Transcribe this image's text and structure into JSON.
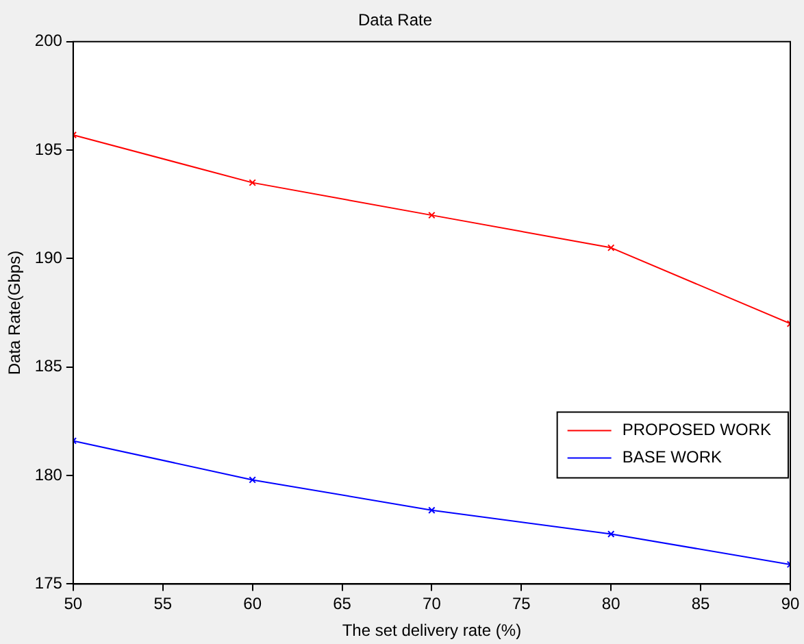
{
  "chart_data": {
    "type": "line",
    "title": "Data Rate",
    "xlabel": "The set delivery rate (%)",
    "ylabel": "Data Rate(Gbps)",
    "x": [
      50,
      60,
      70,
      80,
      90
    ],
    "series": [
      {
        "name": "PROPOSED WORK",
        "color": "#ff0000",
        "values": [
          195.7,
          193.5,
          192.0,
          190.5,
          187.0
        ]
      },
      {
        "name": "BASE WORK",
        "color": "#0000ff",
        "values": [
          181.6,
          179.8,
          178.4,
          177.3,
          175.9
        ]
      }
    ],
    "xlim": [
      50,
      90
    ],
    "xticks": [
      50,
      55,
      60,
      65,
      70,
      75,
      80,
      85,
      90
    ],
    "ylim": [
      175,
      200
    ],
    "yticks": [
      175,
      180,
      185,
      190,
      195,
      200
    ],
    "grid": false,
    "legend": "bottom right",
    "marker": "cross",
    "line_style": "solid"
  }
}
